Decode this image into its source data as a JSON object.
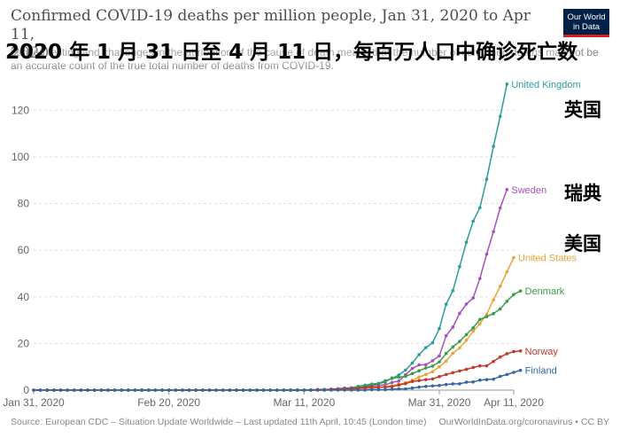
{
  "header": {
    "title_line1": "Confirmed COVID-19 deaths per million people, Jan 31, 2020 to Apr 11,",
    "title_line2": "2020",
    "subtitle_line1": "Limited testing and challenges in the attribution of the cause of death means that the number of confirmed deaths may not be",
    "subtitle_line2": "an accurate count of the true total number of deaths from COVID-19.",
    "zh_title": "2020 年 1 月 31 日至 4 月 11 日，每百万人口中确诊死亡数"
  },
  "logo": {
    "line1": "Our World",
    "line2": "in Data"
  },
  "zh_labels": {
    "uk": "英国",
    "sweden": "瑞典",
    "us": "美国"
  },
  "footer": {
    "source": "Source: European CDC – Situation Update Worldwide – Last updated 11th April, 10:45 (London time)",
    "credit": "OurWorldInData.org/coronavirus • CC BY"
  },
  "chart_data": {
    "type": "line",
    "title": "Confirmed COVID-19 deaths per million people, Jan 31, 2020 to Apr 11, 2020",
    "xlabel": "",
    "ylabel": "",
    "x_start": "2020-01-31",
    "x_end": "2020-04-11",
    "x_ticks": [
      "Jan 31, 2020",
      "Feb 20, 2020",
      "Mar 11, 2020",
      "Mar 31, 2020",
      "Apr 11, 2020"
    ],
    "y_ticks": [
      0,
      20,
      40,
      60,
      80,
      100,
      120
    ],
    "ylim": [
      0,
      130
    ],
    "grid": "horizontal dashed",
    "series": [
      {
        "name": "United Kingdom",
        "color": "#2a9d9a",
        "points": [
          [
            "2020-03-05",
            0
          ],
          [
            "2020-03-06",
            0.02
          ],
          [
            "2020-03-08",
            0.03
          ],
          [
            "2020-03-10",
            0.09
          ],
          [
            "2020-03-11",
            0.09
          ],
          [
            "2020-03-12",
            0.12
          ],
          [
            "2020-03-13",
            0.15
          ],
          [
            "2020-03-14",
            0.3
          ],
          [
            "2020-03-15",
            0.3
          ],
          [
            "2020-03-16",
            0.54
          ],
          [
            "2020-03-17",
            0.83
          ],
          [
            "2020-03-18",
            1.0
          ],
          [
            "2020-03-19",
            1.6
          ],
          [
            "2020-03-20",
            2.1
          ],
          [
            "2020-03-21",
            2.6
          ],
          [
            "2020-03-22",
            2.9
          ],
          [
            "2020-03-23",
            4.0
          ],
          [
            "2020-03-24",
            5.0
          ],
          [
            "2020-03-25",
            6.5
          ],
          [
            "2020-03-26",
            8.6
          ],
          [
            "2020-03-27",
            11.6
          ],
          [
            "2020-03-28",
            15.2
          ],
          [
            "2020-03-29",
            18.2
          ],
          [
            "2020-03-30",
            20.3
          ],
          [
            "2020-03-31",
            26.4
          ],
          [
            "2020-04-01",
            36.8
          ],
          [
            "2020-04-02",
            42.6
          ],
          [
            "2020-04-03",
            53.0
          ],
          [
            "2020-04-04",
            63.4
          ],
          [
            "2020-04-05",
            72.4
          ],
          [
            "2020-04-06",
            78.2
          ],
          [
            "2020-04-07",
            90.4
          ],
          [
            "2020-04-08",
            104.5
          ],
          [
            "2020-04-09",
            117.3
          ],
          [
            "2020-04-10",
            131.2
          ]
        ]
      },
      {
        "name": "Sweden",
        "color": "#a652ba",
        "points": [
          [
            "2020-03-10",
            0
          ],
          [
            "2020-03-11",
            0.1
          ],
          [
            "2020-03-13",
            0.2
          ],
          [
            "2020-03-15",
            0.3
          ],
          [
            "2020-03-16",
            0.6
          ],
          [
            "2020-03-17",
            0.8
          ],
          [
            "2020-03-18",
            1.0
          ],
          [
            "2020-03-19",
            1.1
          ],
          [
            "2020-03-20",
            1.3
          ],
          [
            "2020-03-21",
            1.9
          ],
          [
            "2020-03-22",
            2.1
          ],
          [
            "2020-03-23",
            2.3
          ],
          [
            "2020-03-24",
            3.3
          ],
          [
            "2020-03-25",
            3.9
          ],
          [
            "2020-03-26",
            6.6
          ],
          [
            "2020-03-27",
            9.3
          ],
          [
            "2020-03-28",
            10.8
          ],
          [
            "2020-03-29",
            10.9
          ],
          [
            "2020-03-30",
            12.6
          ],
          [
            "2020-03-31",
            14.7
          ],
          [
            "2020-04-01",
            23.3
          ],
          [
            "2020-04-02",
            27.0
          ],
          [
            "2020-04-03",
            32.9
          ],
          [
            "2020-04-04",
            36.9
          ],
          [
            "2020-04-05",
            39.5
          ],
          [
            "2020-04-06",
            47.9
          ],
          [
            "2020-04-07",
            58.3
          ],
          [
            "2020-04-08",
            67.9
          ],
          [
            "2020-04-09",
            78.1
          ],
          [
            "2020-04-10",
            86.0
          ]
        ]
      },
      {
        "name": "United States",
        "color": "#e8a33a",
        "points": [
          [
            "2020-03-01",
            0
          ],
          [
            "2020-03-04",
            0.02
          ],
          [
            "2020-03-08",
            0.05
          ],
          [
            "2020-03-11",
            0.09
          ],
          [
            "2020-03-13",
            0.12
          ],
          [
            "2020-03-15",
            0.18
          ],
          [
            "2020-03-17",
            0.3
          ],
          [
            "2020-03-18",
            0.4
          ],
          [
            "2020-03-19",
            0.5
          ],
          [
            "2020-03-20",
            0.6
          ],
          [
            "2020-03-21",
            0.8
          ],
          [
            "2020-03-22",
            1.0
          ],
          [
            "2020-03-23",
            1.5
          ],
          [
            "2020-03-24",
            1.9
          ],
          [
            "2020-03-25",
            2.5
          ],
          [
            "2020-03-26",
            3.2
          ],
          [
            "2020-03-27",
            4.2
          ],
          [
            "2020-03-28",
            5.6
          ],
          [
            "2020-03-29",
            6.7
          ],
          [
            "2020-03-30",
            7.9
          ],
          [
            "2020-03-31",
            10.0
          ],
          [
            "2020-04-01",
            12.4
          ],
          [
            "2020-04-02",
            15.8
          ],
          [
            "2020-04-03",
            18.1
          ],
          [
            "2020-04-04",
            21.4
          ],
          [
            "2020-04-05",
            25.3
          ],
          [
            "2020-04-06",
            28.5
          ],
          [
            "2020-04-07",
            32.5
          ],
          [
            "2020-04-08",
            38.7
          ],
          [
            "2020-04-09",
            44.5
          ],
          [
            "2020-04-10",
            50.7
          ],
          [
            "2020-04-11",
            56.8
          ]
        ]
      },
      {
        "name": "Denmark",
        "color": "#3a9b46",
        "points": [
          [
            "2020-03-14",
            0
          ],
          [
            "2020-03-15",
            0.2
          ],
          [
            "2020-03-16",
            0.4
          ],
          [
            "2020-03-17",
            0.7
          ],
          [
            "2020-03-18",
            0.7
          ],
          [
            "2020-03-19",
            1.4
          ],
          [
            "2020-03-20",
            1.4
          ],
          [
            "2020-03-21",
            2.3
          ],
          [
            "2020-03-22",
            2.8
          ],
          [
            "2020-03-23",
            3.5
          ],
          [
            "2020-03-24",
            5.2
          ],
          [
            "2020-03-25",
            5.5
          ],
          [
            "2020-03-26",
            5.9
          ],
          [
            "2020-03-27",
            7.1
          ],
          [
            "2020-03-28",
            8.3
          ],
          [
            "2020-03-29",
            9.5
          ],
          [
            "2020-03-30",
            10.3
          ],
          [
            "2020-03-31",
            12.1
          ],
          [
            "2020-04-01",
            15.7
          ],
          [
            "2020-04-02",
            18.5
          ],
          [
            "2020-04-03",
            20.9
          ],
          [
            "2020-04-04",
            23.8
          ],
          [
            "2020-04-05",
            26.7
          ],
          [
            "2020-04-06",
            30.3
          ],
          [
            "2020-04-07",
            31.5
          ],
          [
            "2020-04-08",
            32.8
          ],
          [
            "2020-04-09",
            34.8
          ],
          [
            "2020-04-10",
            38.1
          ],
          [
            "2020-04-11",
            41.0
          ],
          [
            "2020-04-12",
            42.5
          ]
        ]
      },
      {
        "name": "Norway",
        "color": "#c0392b",
        "points": [
          [
            "2020-03-12",
            0
          ],
          [
            "2020-03-13",
            0.2
          ],
          [
            "2020-03-15",
            0.4
          ],
          [
            "2020-03-17",
            0.6
          ],
          [
            "2020-03-18",
            0.6
          ],
          [
            "2020-03-19",
            0.7
          ],
          [
            "2020-03-20",
            1.1
          ],
          [
            "2020-03-21",
            1.3
          ],
          [
            "2020-03-22",
            1.3
          ],
          [
            "2020-03-23",
            1.3
          ],
          [
            "2020-03-24",
            1.5
          ],
          [
            "2020-03-25",
            2.2
          ],
          [
            "2020-03-26",
            2.8
          ],
          [
            "2020-03-27",
            3.7
          ],
          [
            "2020-03-28",
            4.1
          ],
          [
            "2020-03-29",
            4.5
          ],
          [
            "2020-03-30",
            4.8
          ],
          [
            "2020-03-31",
            5.8
          ],
          [
            "2020-04-01",
            6.7
          ],
          [
            "2020-04-02",
            7.5
          ],
          [
            "2020-04-03",
            8.2
          ],
          [
            "2020-04-04",
            8.9
          ],
          [
            "2020-04-05",
            9.7
          ],
          [
            "2020-04-06",
            10.4
          ],
          [
            "2020-04-07",
            10.4
          ],
          [
            "2020-04-08",
            12.3
          ],
          [
            "2020-04-09",
            14.2
          ],
          [
            "2020-04-10",
            15.6
          ],
          [
            "2020-04-11",
            16.5
          ],
          [
            "2020-04-12",
            16.8
          ]
        ]
      },
      {
        "name": "Finland",
        "color": "#3465a4",
        "points": [
          [
            "2020-03-20",
            0
          ],
          [
            "2020-03-21",
            0.2
          ],
          [
            "2020-03-22",
            0.2
          ],
          [
            "2020-03-23",
            0.2
          ],
          [
            "2020-03-24",
            0.4
          ],
          [
            "2020-03-25",
            0.5
          ],
          [
            "2020-03-26",
            0.5
          ],
          [
            "2020-03-27",
            0.9
          ],
          [
            "2020-03-28",
            1.3
          ],
          [
            "2020-03-29",
            1.6
          ],
          [
            "2020-03-30",
            1.8
          ],
          [
            "2020-03-31",
            2.0
          ],
          [
            "2020-04-01",
            2.4
          ],
          [
            "2020-04-02",
            2.7
          ],
          [
            "2020-04-03",
            2.7
          ],
          [
            "2020-04-04",
            3.4
          ],
          [
            "2020-04-05",
            3.5
          ],
          [
            "2020-04-06",
            4.3
          ],
          [
            "2020-04-07",
            4.5
          ],
          [
            "2020-04-08",
            4.7
          ],
          [
            "2020-04-09",
            5.9
          ],
          [
            "2020-04-10",
            6.7
          ],
          [
            "2020-04-11",
            7.6
          ],
          [
            "2020-04-12",
            8.5
          ]
        ]
      }
    ]
  }
}
